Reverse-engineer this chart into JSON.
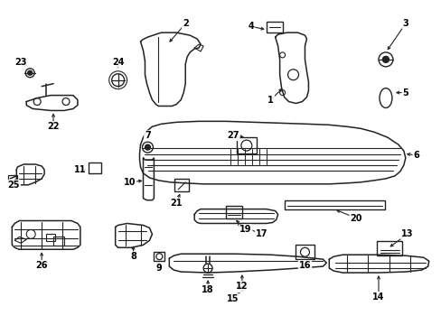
{
  "bg_color": "#ffffff",
  "line_color": "#222222",
  "figsize": [
    4.89,
    3.6
  ],
  "dpi": 100
}
